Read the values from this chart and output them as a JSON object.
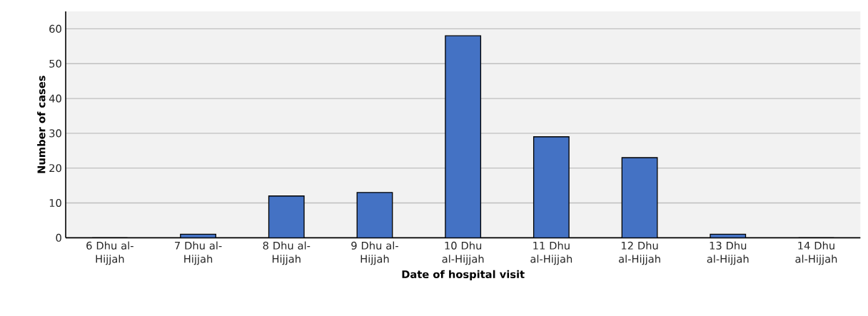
{
  "chart_data": {
    "type": "bar",
    "xlabel": "Date of hospital visit",
    "ylabel": "Number of cases",
    "categories": [
      "6 Dhu al-Hijjah",
      "7 Dhu al-Hijjah",
      "8 Dhu al-Hijjah",
      "9 Dhu al-Hijjah",
      "10 Dhu al-Hijjah",
      "11 Dhu al-Hijjah",
      "12 Dhu al-Hijjah",
      "13 Dhu al-Hijjah",
      "14 Dhu al-Hijjah"
    ],
    "values": [
      0,
      1,
      12,
      13,
      58,
      29,
      23,
      1,
      0
    ],
    "color": "#4472c4",
    "ylim": [
      0,
      65
    ],
    "yticks": [
      0,
      10,
      20,
      30,
      40,
      50,
      60
    ],
    "grid": "y"
  }
}
